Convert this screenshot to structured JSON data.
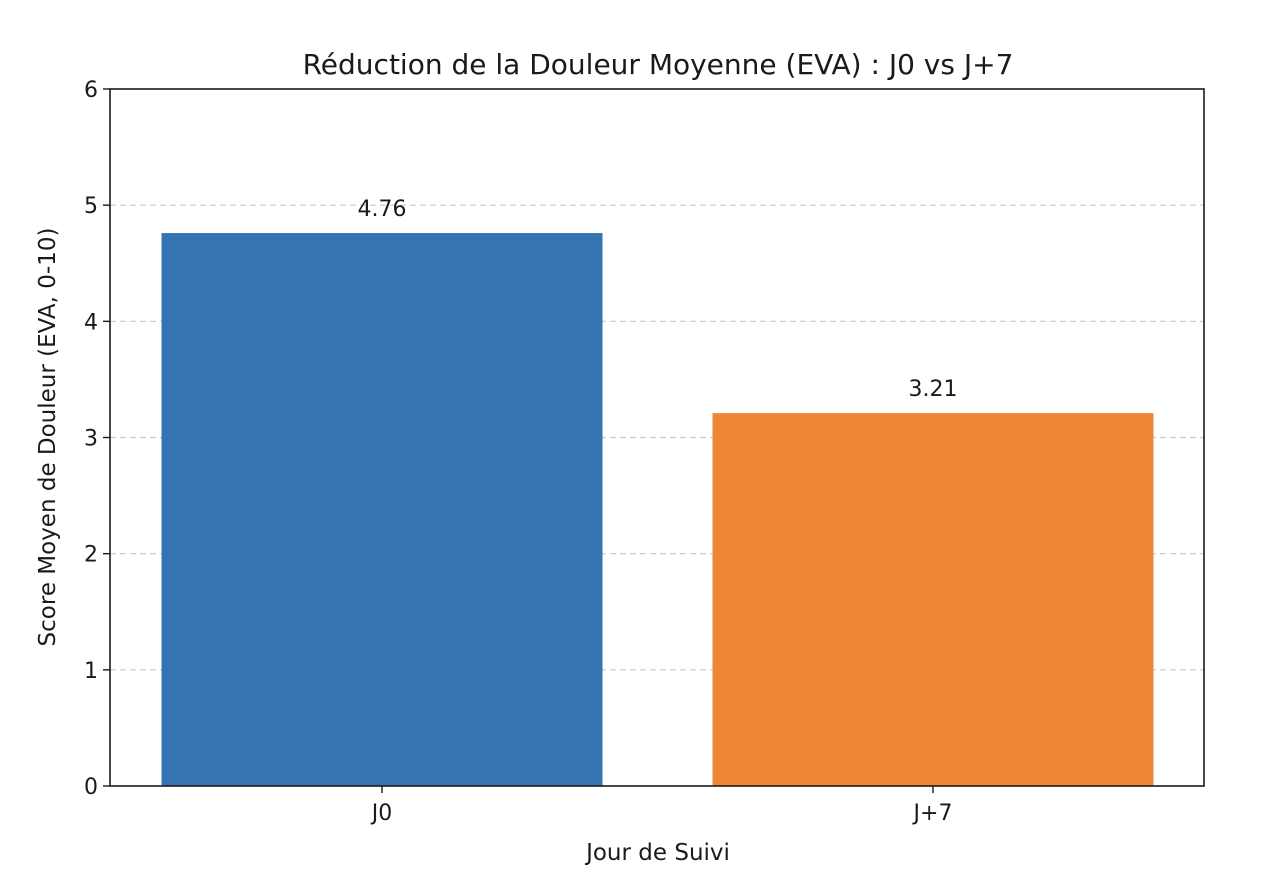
{
  "chart_data": {
    "type": "bar",
    "title": "Réduction de la Douleur Moyenne (EVA) : J0 vs J+7",
    "xlabel": "Jour de Suivi",
    "ylabel": "Score Moyen de Douleur (EVA, 0-10)",
    "categories": [
      "J0",
      "J+7"
    ],
    "values": [
      4.76,
      3.21
    ],
    "value_labels": [
      "4.76",
      "3.21"
    ],
    "colors": [
      "#3574b0",
      "#ef8636"
    ],
    "ylim": [
      0,
      6
    ],
    "yticks": [
      0,
      1,
      2,
      3,
      4,
      5,
      6
    ],
    "ytick_labels": [
      "0",
      "1",
      "2",
      "3",
      "4",
      "5",
      "6"
    ],
    "grid": "horizontal dashed",
    "legend": "none"
  }
}
